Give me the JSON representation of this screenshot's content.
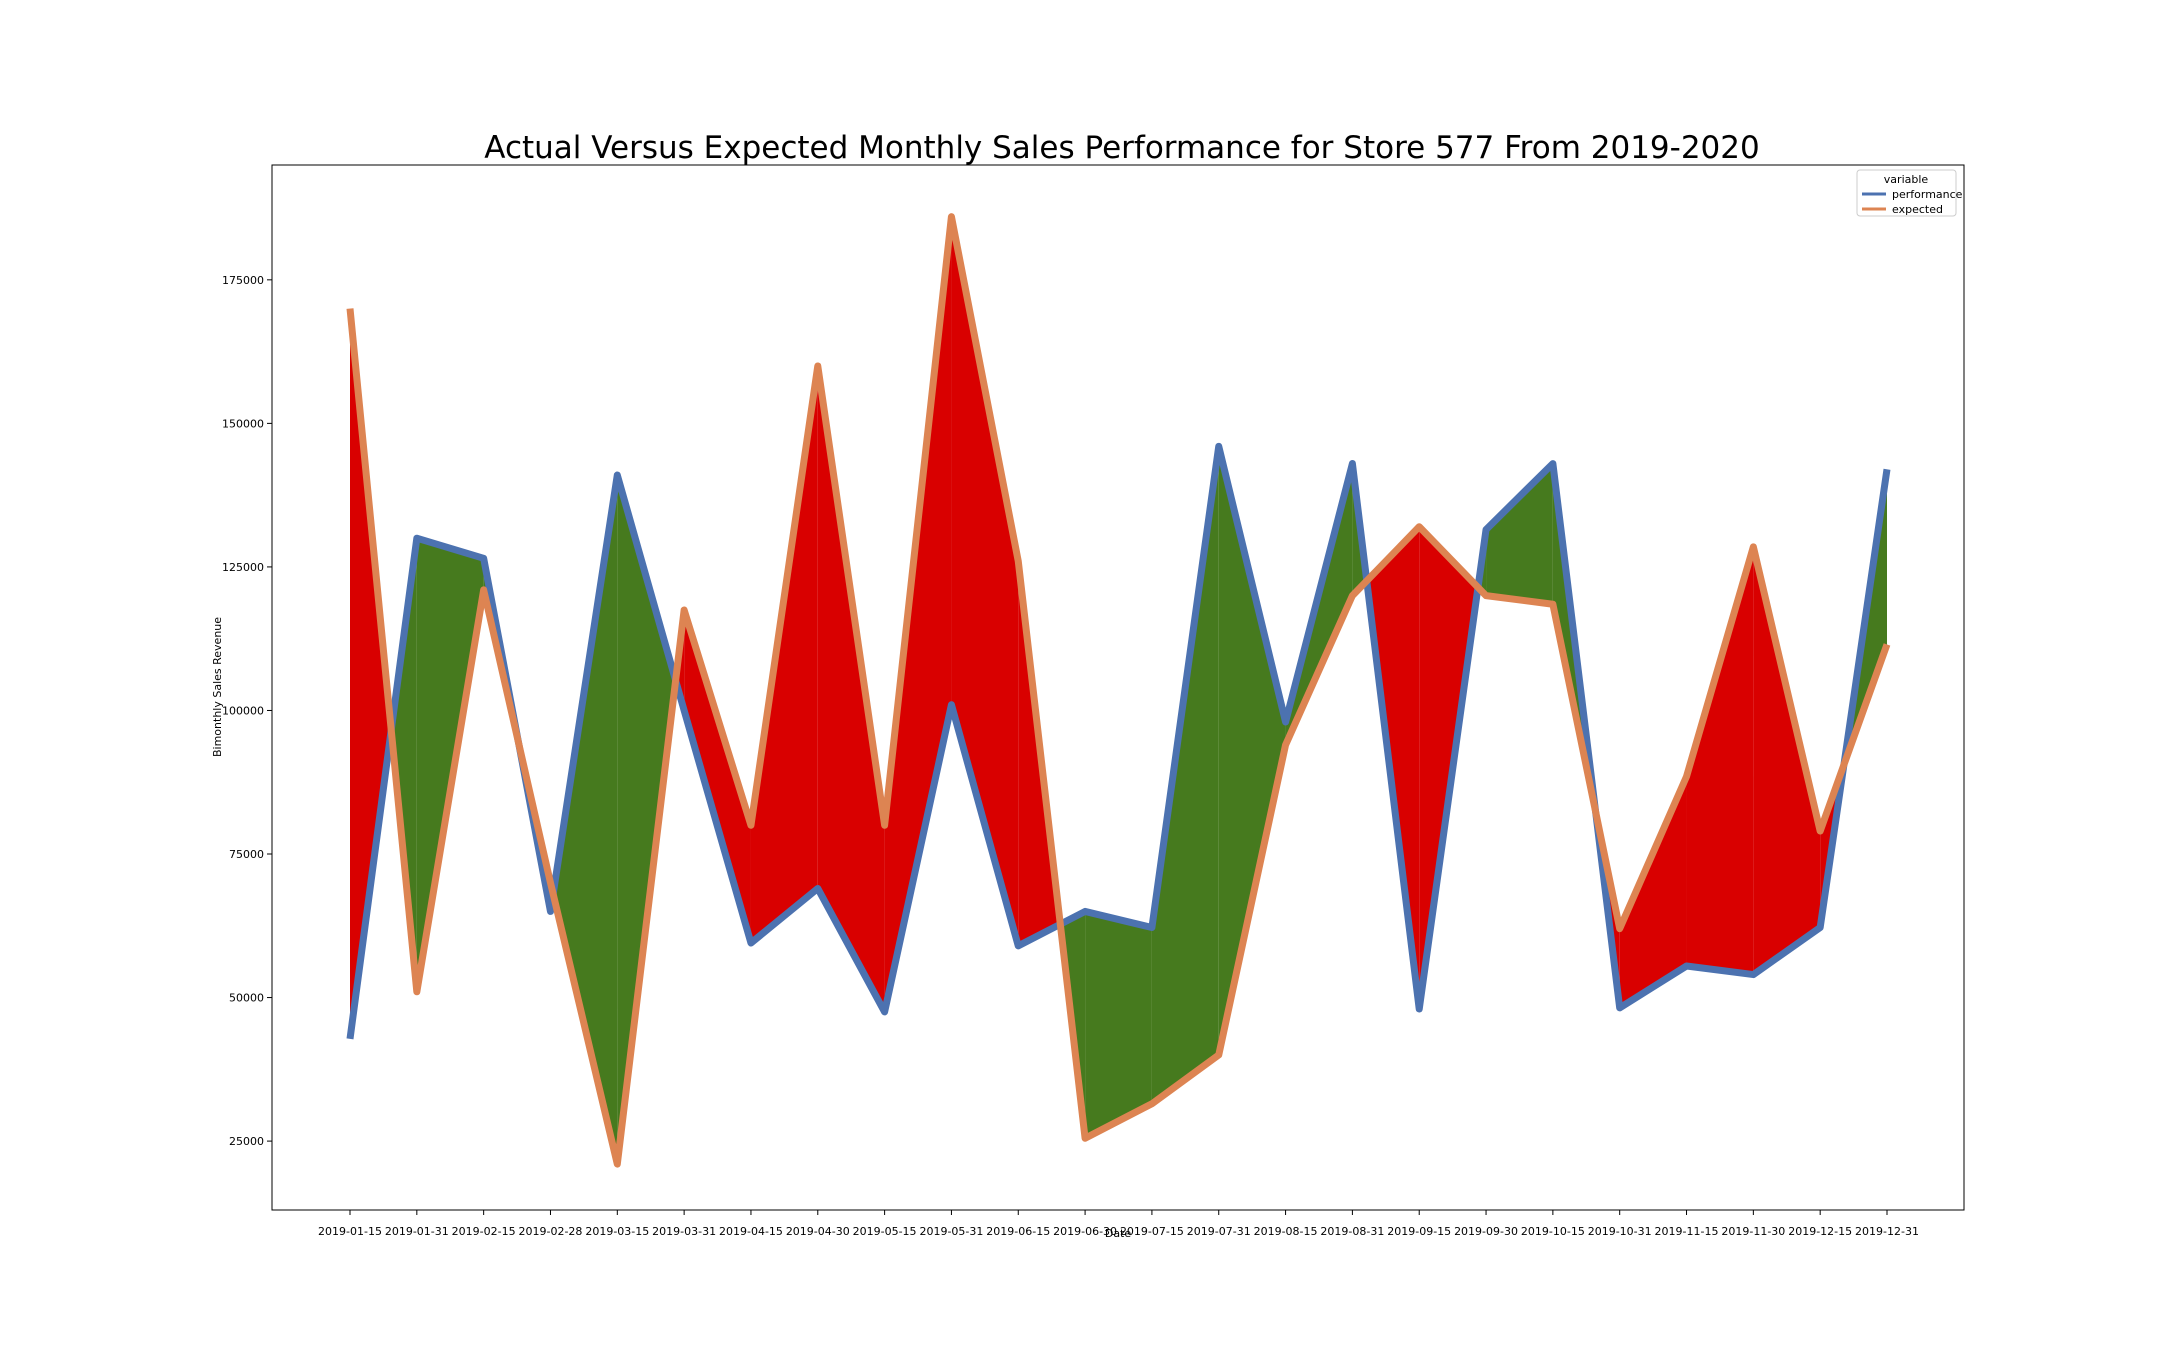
{
  "chart_data": {
    "type": "area",
    "title": "Actual Versus Expected Monthly Sales Performance for Store 577 From 2019-2020",
    "xlabel": "Date",
    "ylabel": "Bimonthly Sales Revenue",
    "categories": [
      "2019-01-15",
      "2019-01-31",
      "2019-02-15",
      "2019-02-28",
      "2019-03-15",
      "2019-03-31",
      "2019-04-15",
      "2019-04-30",
      "2019-05-15",
      "2019-05-31",
      "2019-06-15",
      "2019-06-30",
      "2019-07-15",
      "2019-07-31",
      "2019-08-15",
      "2019-08-31",
      "2019-09-15",
      "2019-09-30",
      "2019-10-15",
      "2019-10-31",
      "2019-11-15",
      "2019-11-30",
      "2019-12-15",
      "2019-12-31"
    ],
    "series": [
      {
        "name": "performance",
        "color": "#4c72b0",
        "values": [
          42800,
          130000,
          126500,
          65000,
          141000,
          100000,
          59500,
          69000,
          47500,
          101000,
          59000,
          65000,
          62200,
          146000,
          98000,
          143000,
          48000,
          131500,
          143000,
          48200,
          55500,
          54000,
          62200,
          142000
        ]
      },
      {
        "name": "expected",
        "color": "#dd8452",
        "values": [
          170000,
          51000,
          121000,
          70000,
          21000,
          117500,
          80000,
          160000,
          80000,
          186000,
          126000,
          25500,
          31500,
          40000,
          94000,
          120000,
          132000,
          120000,
          118500,
          62000,
          88500,
          128500,
          79000,
          111500
        ]
      }
    ],
    "fill_colors": {
      "above": "#467a1e",
      "below": "#d90000"
    },
    "ylim": [
      13000,
      195000
    ],
    "yticks": [
      25000,
      50000,
      75000,
      100000,
      125000,
      150000,
      175000
    ],
    "grid": false,
    "legend_title": "variable",
    "legend_position": "top-right"
  }
}
